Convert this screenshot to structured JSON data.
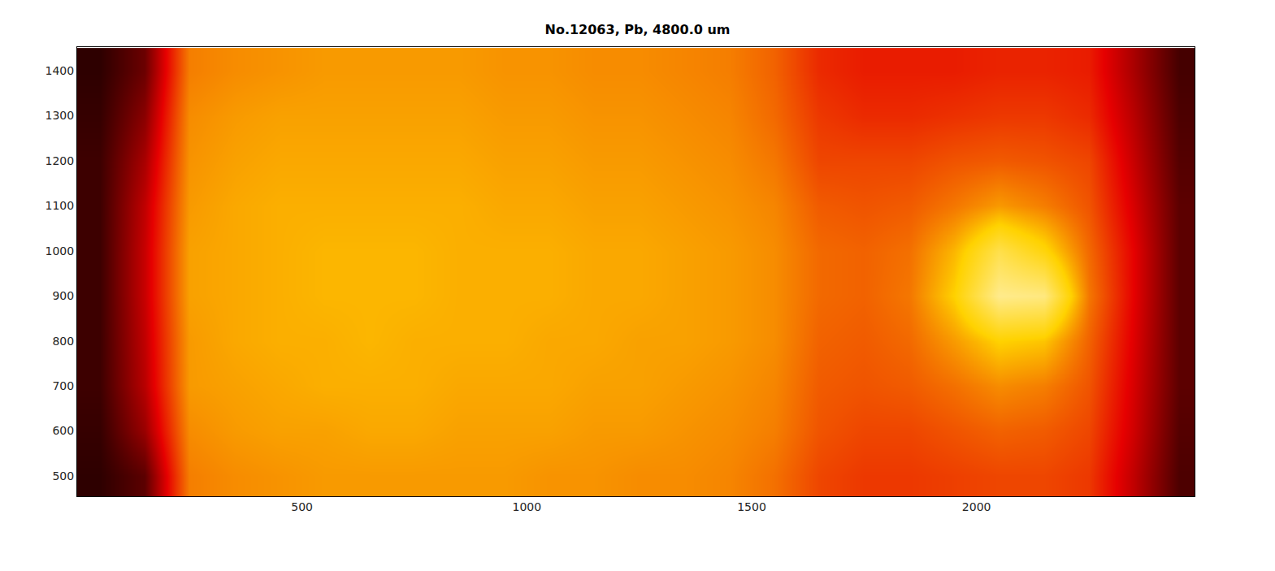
{
  "chart_data": {
    "type": "heatmap",
    "title": "No.12063, Pb, 4800.0 um",
    "x": [
      50,
      150,
      250,
      350,
      450,
      550,
      650,
      750,
      850,
      950,
      1050,
      1150,
      1250,
      1350,
      1450,
      1550,
      1650,
      1750,
      1850,
      1950,
      2050,
      2150,
      2250,
      2350,
      2450
    ],
    "y": [
      500,
      600,
      700,
      800,
      900,
      1000,
      1100,
      1200,
      1300,
      1400
    ],
    "z": [
      [
        0.06,
        0.12,
        0.48,
        0.5,
        0.51,
        0.52,
        0.52,
        0.52,
        0.52,
        0.52,
        0.51,
        0.51,
        0.5,
        0.5,
        0.49,
        0.46,
        0.4,
        0.38,
        0.38,
        0.39,
        0.4,
        0.4,
        0.38,
        0.25,
        0.1
      ],
      [
        0.07,
        0.2,
        0.5,
        0.52,
        0.53,
        0.53,
        0.54,
        0.54,
        0.53,
        0.53,
        0.53,
        0.52,
        0.52,
        0.51,
        0.5,
        0.48,
        0.42,
        0.4,
        0.4,
        0.42,
        0.44,
        0.43,
        0.4,
        0.27,
        0.11
      ],
      [
        0.08,
        0.24,
        0.52,
        0.53,
        0.54,
        0.55,
        0.55,
        0.55,
        0.54,
        0.54,
        0.54,
        0.53,
        0.53,
        0.52,
        0.51,
        0.49,
        0.43,
        0.42,
        0.43,
        0.46,
        0.5,
        0.48,
        0.42,
        0.28,
        0.12
      ],
      [
        0.08,
        0.25,
        0.52,
        0.54,
        0.55,
        0.55,
        0.56,
        0.55,
        0.55,
        0.55,
        0.54,
        0.54,
        0.53,
        0.53,
        0.52,
        0.5,
        0.44,
        0.43,
        0.45,
        0.52,
        0.6,
        0.58,
        0.44,
        0.29,
        0.12
      ],
      [
        0.08,
        0.26,
        0.53,
        0.54,
        0.55,
        0.56,
        0.56,
        0.56,
        0.55,
        0.55,
        0.55,
        0.54,
        0.54,
        0.53,
        0.52,
        0.5,
        0.45,
        0.44,
        0.47,
        0.6,
        0.82,
        0.8,
        0.47,
        0.3,
        0.12
      ],
      [
        0.08,
        0.26,
        0.53,
        0.54,
        0.55,
        0.56,
        0.56,
        0.56,
        0.55,
        0.55,
        0.55,
        0.54,
        0.54,
        0.53,
        0.52,
        0.5,
        0.45,
        0.44,
        0.46,
        0.56,
        0.72,
        0.62,
        0.45,
        0.3,
        0.12
      ],
      [
        0.08,
        0.25,
        0.52,
        0.54,
        0.55,
        0.55,
        0.55,
        0.55,
        0.55,
        0.54,
        0.54,
        0.53,
        0.53,
        0.52,
        0.51,
        0.49,
        0.43,
        0.42,
        0.43,
        0.47,
        0.52,
        0.48,
        0.42,
        0.28,
        0.12
      ],
      [
        0.08,
        0.22,
        0.51,
        0.53,
        0.54,
        0.54,
        0.54,
        0.54,
        0.54,
        0.53,
        0.53,
        0.52,
        0.52,
        0.51,
        0.5,
        0.47,
        0.4,
        0.4,
        0.4,
        0.42,
        0.43,
        0.42,
        0.4,
        0.26,
        0.11
      ],
      [
        0.07,
        0.18,
        0.5,
        0.52,
        0.53,
        0.53,
        0.53,
        0.53,
        0.53,
        0.52,
        0.52,
        0.51,
        0.51,
        0.5,
        0.49,
        0.45,
        0.38,
        0.36,
        0.36,
        0.37,
        0.38,
        0.38,
        0.36,
        0.24,
        0.1
      ],
      [
        0.06,
        0.14,
        0.48,
        0.5,
        0.51,
        0.52,
        0.52,
        0.52,
        0.52,
        0.51,
        0.51,
        0.5,
        0.5,
        0.49,
        0.48,
        0.44,
        0.36,
        0.34,
        0.34,
        0.34,
        0.35,
        0.35,
        0.34,
        0.22,
        0.09
      ]
    ],
    "zlim": [
      0,
      1
    ],
    "xlim": [
      0,
      2485
    ],
    "ylim": [
      455,
      1452
    ],
    "xticks": [
      500,
      1000,
      1500,
      2000
    ],
    "yticks": [
      500,
      600,
      700,
      800,
      900,
      1000,
      1100,
      1200,
      1300,
      1400
    ]
  }
}
